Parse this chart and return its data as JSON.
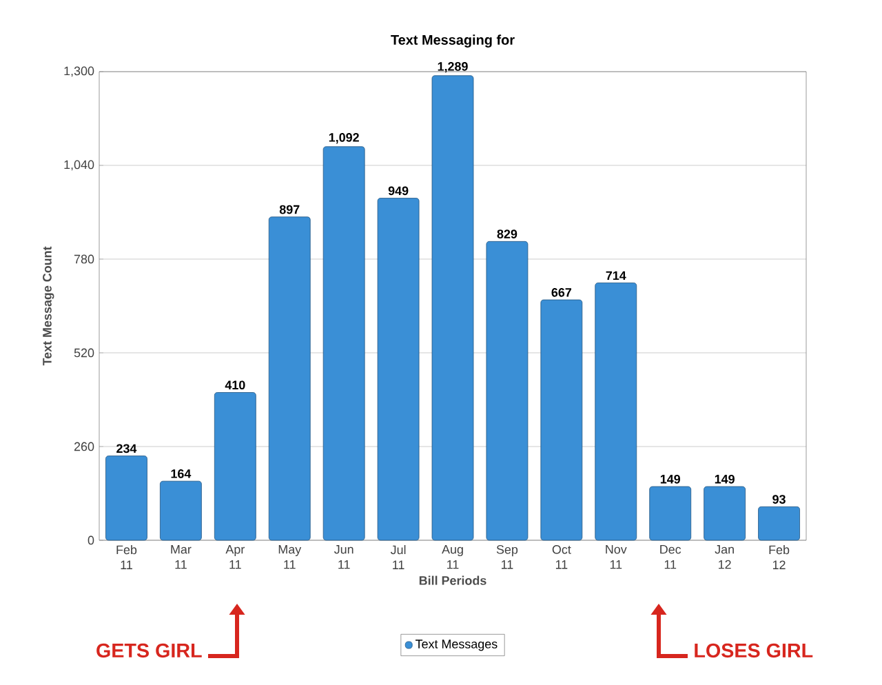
{
  "chart_data": {
    "type": "bar",
    "title": "Text Messaging for",
    "xlabel": "Bill Periods",
    "ylabel": "Text Message Count",
    "categories": [
      "Feb 11",
      "Mar 11",
      "Apr 11",
      "May 11",
      "Jun 11",
      "Jul 11",
      "Aug 11",
      "Sep 11",
      "Oct 11",
      "Nov 11",
      "Dec 11",
      "Jan 12",
      "Feb 12"
    ],
    "series": [
      {
        "name": "Text Messages",
        "color": "#3a8fd6",
        "values": [
          234,
          164,
          410,
          897,
          1092,
          949,
          1289,
          829,
          667,
          714,
          149,
          149,
          93
        ],
        "value_labels": [
          "234",
          "164",
          "410",
          "897",
          "1,092",
          "949",
          "1,289",
          "829",
          "667",
          "714",
          "149",
          "149",
          "93"
        ]
      }
    ],
    "ylim": [
      0,
      1300
    ],
    "yticks": [
      0,
      260,
      520,
      780,
      {
        "value": 1040,
        "label": "1,040"
      },
      {
        "value": 1300,
        "label": "1,300"
      }
    ],
    "grid": "y",
    "legend": "bottom",
    "annotations": [
      "GETS GIRL",
      "LOSES GIRL"
    ]
  }
}
